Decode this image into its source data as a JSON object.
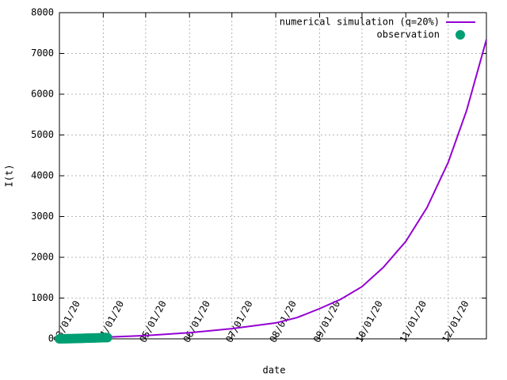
{
  "chart_data": {
    "type": "line",
    "x_label": "date",
    "y_label": "I(t)",
    "xlim": [
      "2020-03-01",
      "2020-12-28"
    ],
    "ylim": [
      0,
      8000
    ],
    "xticks": [
      {
        "value": "2020-03-01",
        "label": "03/01/20"
      },
      {
        "value": "2020-04-01",
        "label": "04/01/20"
      },
      {
        "value": "2020-05-01",
        "label": "05/01/20"
      },
      {
        "value": "2020-06-01",
        "label": "06/01/20"
      },
      {
        "value": "2020-07-01",
        "label": "07/01/20"
      },
      {
        "value": "2020-08-01",
        "label": "08/01/20"
      },
      {
        "value": "2020-09-01",
        "label": "09/01/20"
      },
      {
        "value": "2020-10-01",
        "label": "10/01/20"
      },
      {
        "value": "2020-11-01",
        "label": "11/01/20"
      },
      {
        "value": "2020-12-01",
        "label": "12/01/20"
      }
    ],
    "yticks": [
      0,
      1000,
      2000,
      3000,
      4000,
      5000,
      6000,
      7000,
      8000
    ],
    "grid": true,
    "legend": "top-right",
    "series": [
      {
        "name": "numerical simulation (q=20%)",
        "color": "#9400d3",
        "type": "line",
        "x": [
          "2020-03-01",
          "2020-04-01",
          "2020-05-01",
          "2020-06-01",
          "2020-07-01",
          "2020-08-01",
          "2020-08-16",
          "2020-09-01",
          "2020-09-16",
          "2020-10-01",
          "2020-10-16",
          "2020-11-01",
          "2020-11-16",
          "2020-12-01",
          "2020-12-14",
          "2020-12-28"
        ],
        "values": [
          20,
          40,
          80,
          150,
          250,
          390,
          520,
          740,
          970,
          1280,
          1750,
          2390,
          3220,
          4330,
          5600,
          7340
        ]
      },
      {
        "name": "observation",
        "color": "#009e73",
        "type": "scatter",
        "x": [
          "2020-03-01",
          "2020-03-02",
          "2020-03-03",
          "2020-03-04",
          "2020-03-05",
          "2020-03-06",
          "2020-03-07",
          "2020-03-08",
          "2020-03-09",
          "2020-03-10",
          "2020-03-11",
          "2020-03-12",
          "2020-03-13",
          "2020-03-14",
          "2020-03-15",
          "2020-03-16",
          "2020-03-17",
          "2020-03-18",
          "2020-03-19",
          "2020-03-20",
          "2020-03-21",
          "2020-03-22",
          "2020-03-23",
          "2020-03-24",
          "2020-03-25",
          "2020-03-26",
          "2020-03-27",
          "2020-03-28",
          "2020-03-29",
          "2020-03-30",
          "2020-03-31",
          "2020-04-01",
          "2020-04-02",
          "2020-04-03",
          "2020-04-04"
        ],
        "values": [
          1,
          1,
          2,
          2,
          3,
          3,
          4,
          5,
          5,
          6,
          7,
          8,
          9,
          10,
          11,
          12,
          13,
          14,
          15,
          16,
          17,
          18,
          19,
          20,
          21,
          22,
          23,
          24,
          25,
          26,
          27,
          28,
          29,
          30,
          31
        ]
      }
    ]
  }
}
